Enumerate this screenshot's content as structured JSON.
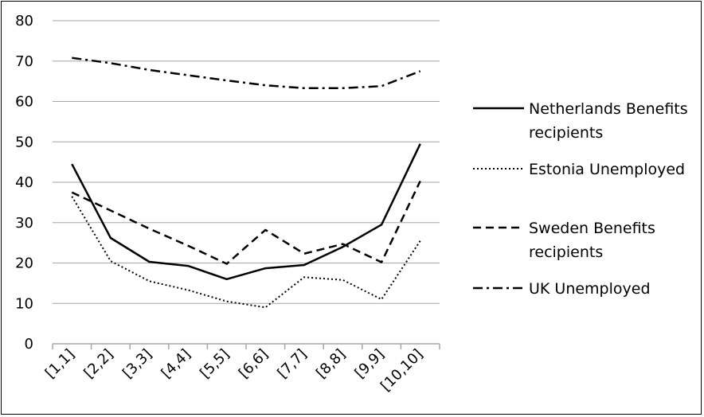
{
  "chart_data": {
    "type": "line",
    "categories": [
      "[1,1]",
      "[2,2]",
      "[3,3]",
      "[4,4]",
      "[5,5]",
      "[6,6]",
      "[7,7]",
      "[8,8]",
      "[9,9]",
      "[10,10]"
    ],
    "series": [
      {
        "name": "Netherlands Benefits recipients",
        "values": [
          44.5,
          26.2,
          20.3,
          19.3,
          16.0,
          18.7,
          19.5,
          24.0,
          29.5,
          49.5
        ],
        "style": "solid"
      },
      {
        "name": "Estonia Unemployed",
        "values": [
          36.5,
          20.5,
          15.5,
          13.3,
          10.5,
          9.0,
          16.5,
          15.8,
          11.0,
          25.5
        ],
        "style": "dotted"
      },
      {
        "name": "Sweden Benefits recipients",
        "values": [
          37.5,
          33.0,
          28.5,
          24.3,
          19.8,
          28.2,
          22.3,
          24.7,
          20.2,
          40.3
        ],
        "style": "dashed"
      },
      {
        "name": "UK Unemployed",
        "values": [
          70.8,
          69.5,
          67.8,
          66.5,
          65.2,
          64.0,
          63.3,
          63.3,
          63.8,
          67.5
        ],
        "style": "dashdot"
      }
    ],
    "ylim": [
      0,
      80
    ],
    "yticks": [
      "0",
      "10",
      "20",
      "30",
      "40",
      "50",
      "60",
      "70",
      "80"
    ],
    "grid": true,
    "legend_position": "right",
    "color": "#000000"
  }
}
